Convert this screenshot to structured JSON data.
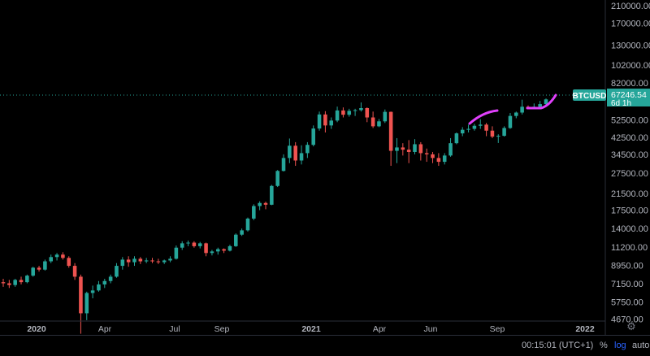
{
  "symbol_label": {
    "symbol": "BTCUSD",
    "price": "67246.54",
    "countdown": "6d 1h",
    "color": "#26a69a"
  },
  "colors": {
    "up": "#26a69a",
    "down": "#ef5350",
    "annotation": "#e040fb",
    "price_line": "#26a69a"
  },
  "bottom_bar": {
    "time": "00:15:01 (UTC+1)",
    "percent": "%",
    "log": "log",
    "auto": "auto"
  },
  "settings_icon": "gear-icon",
  "chart_data": {
    "type": "candlestick",
    "scale": "log",
    "y_ticks": [
      "210000.00",
      "170000.00",
      "130000.00",
      "102000.00",
      "82000.00",
      "52500.00",
      "42500.00",
      "34500.00",
      "27500.00",
      "21500.00",
      "17500.00",
      "14000.00",
      "11200.00",
      "8950.00",
      "7150.00",
      "5750.00",
      "4670.00"
    ],
    "x_ticks": [
      {
        "label": "2020",
        "bold": true
      },
      {
        "label": "Apr",
        "bold": false
      },
      {
        "label": "Jul",
        "bold": false
      },
      {
        "label": "Sep",
        "bold": false
      },
      {
        "label": "2021",
        "bold": true
      },
      {
        "label": "Apr",
        "bold": false
      },
      {
        "label": "Jun",
        "bold": false
      },
      {
        "label": "Sep",
        "bold": false
      },
      {
        "label": "2022",
        "bold": true
      }
    ],
    "ylim": [
      4550,
      225000
    ],
    "last_price": 67246.54,
    "candles_ohlc": [
      [
        7300,
        7600,
        6900,
        7200
      ],
      [
        7200,
        7500,
        6800,
        7050
      ],
      [
        7050,
        7600,
        6900,
        7500
      ],
      [
        7500,
        7800,
        7100,
        7300
      ],
      [
        7300,
        8000,
        7200,
        7900
      ],
      [
        7900,
        8800,
        7800,
        8700
      ],
      [
        8700,
        8900,
        8300,
        8500
      ],
      [
        8500,
        9600,
        8400,
        9400
      ],
      [
        9400,
        10200,
        9200,
        9900
      ],
      [
        9900,
        10400,
        9500,
        10200
      ],
      [
        10200,
        10500,
        9600,
        9800
      ],
      [
        9800,
        10000,
        8700,
        8900
      ],
      [
        8900,
        9200,
        7500,
        7800
      ],
      [
        7800,
        8000,
        3900,
        5000
      ],
      [
        5000,
        6500,
        4600,
        6400
      ],
      [
        6400,
        7000,
        6000,
        6600
      ],
      [
        6600,
        7400,
        6500,
        7100
      ],
      [
        7100,
        7600,
        6800,
        7400
      ],
      [
        7400,
        8000,
        7200,
        7800
      ],
      [
        7800,
        9200,
        7700,
        8900
      ],
      [
        8900,
        9900,
        8500,
        9600
      ],
      [
        9600,
        10000,
        8800,
        9300
      ],
      [
        9300,
        10000,
        8900,
        9700
      ],
      [
        9700,
        9900,
        9100,
        9400
      ],
      [
        9400,
        9800,
        9200,
        9500
      ],
      [
        9500,
        9800,
        9200,
        9400
      ],
      [
        9400,
        9700,
        9100,
        9300
      ],
      [
        9300,
        9600,
        9100,
        9500
      ],
      [
        9500,
        10000,
        9300,
        9700
      ],
      [
        9700,
        11400,
        9600,
        11100
      ],
      [
        11100,
        12000,
        10800,
        11700
      ],
      [
        11700,
        12100,
        11300,
        11800
      ],
      [
        11800,
        12000,
        11100,
        11300
      ],
      [
        11300,
        11900,
        11000,
        11700
      ],
      [
        11700,
        11800,
        10000,
        10400
      ],
      [
        10400,
        10800,
        10100,
        10600
      ],
      [
        10600,
        11100,
        10200,
        10900
      ],
      [
        10900,
        11000,
        10400,
        10700
      ],
      [
        10700,
        11500,
        10600,
        11300
      ],
      [
        11300,
        13200,
        11200,
        13000
      ],
      [
        13000,
        14000,
        12800,
        13700
      ],
      [
        13700,
        16000,
        13500,
        15800
      ],
      [
        15800,
        18800,
        15500,
        18400
      ],
      [
        18400,
        19500,
        17500,
        19100
      ],
      [
        19100,
        19400,
        17700,
        18700
      ],
      [
        18700,
        23800,
        18600,
        23500
      ],
      [
        23500,
        28500,
        23200,
        28200
      ],
      [
        28200,
        34500,
        28000,
        33000
      ],
      [
        33000,
        41800,
        31000,
        38300
      ],
      [
        38300,
        40000,
        30000,
        32000
      ],
      [
        32000,
        38500,
        30500,
        35000
      ],
      [
        35000,
        40000,
        33000,
        38700
      ],
      [
        38700,
        49000,
        38000,
        47200
      ],
      [
        47200,
        58000,
        46000,
        56000
      ],
      [
        56000,
        58300,
        45000,
        49000
      ],
      [
        49000,
        54000,
        47000,
        52000
      ],
      [
        52000,
        61600,
        51000,
        58800
      ],
      [
        58800,
        61000,
        54000,
        55800
      ],
      [
        55800,
        60000,
        54500,
        58500
      ],
      [
        58500,
        60000,
        55000,
        59000
      ],
      [
        59000,
        64800,
        58000,
        60500
      ],
      [
        60500,
        61000,
        51000,
        54000
      ],
      [
        54000,
        58000,
        47500,
        48500
      ],
      [
        48500,
        53000,
        48000,
        51500
      ],
      [
        51500,
        59500,
        50500,
        57800
      ],
      [
        57800,
        58000,
        30000,
        36000
      ],
      [
        36000,
        42000,
        31000,
        37500
      ],
      [
        37500,
        39500,
        34000,
        36500
      ],
      [
        36500,
        41000,
        31000,
        35500
      ],
      [
        35500,
        41500,
        34500,
        39000
      ],
      [
        39000,
        40000,
        32000,
        35000
      ],
      [
        35000,
        37000,
        31500,
        34500
      ],
      [
        34500,
        35500,
        31000,
        33000
      ],
      [
        33000,
        35000,
        30000,
        31500
      ],
      [
        31500,
        35000,
        30500,
        34000
      ],
      [
        34000,
        42000,
        33500,
        39500
      ],
      [
        39500,
        45000,
        39000,
        44500
      ],
      [
        44500,
        48000,
        43000,
        46500
      ],
      [
        46500,
        49500,
        45000,
        47000
      ],
      [
        47000,
        50000,
        46000,
        48800
      ],
      [
        48800,
        52900,
        47000,
        49500
      ],
      [
        49500,
        50500,
        43000,
        46000
      ],
      [
        46000,
        48500,
        42000,
        42800
      ],
      [
        42800,
        44000,
        39600,
        43200
      ],
      [
        43200,
        48500,
        42800,
        47500
      ],
      [
        47500,
        57000,
        47000,
        55000
      ],
      [
        55000,
        58000,
        53500,
        57300
      ],
      [
        57300,
        67000,
        56000,
        61500
      ],
      [
        61500,
        62500,
        59800,
        60900
      ],
      [
        60900,
        64000,
        60000,
        61500
      ],
      [
        61500,
        66000,
        61000,
        63500
      ],
      [
        63500,
        68000,
        63000,
        67246.54
      ]
    ],
    "annotations": [
      {
        "type": "arc-stroke",
        "color": "#e040fb",
        "near": "Aug 2021 rally"
      },
      {
        "type": "curve-stroke",
        "color": "#e040fb",
        "near": "Nov 2021 high"
      }
    ]
  }
}
